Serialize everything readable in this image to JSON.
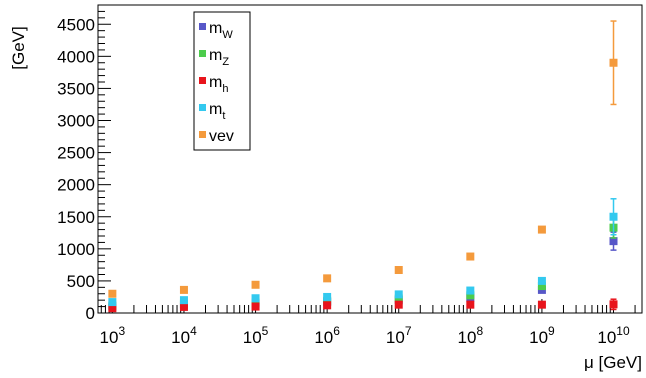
{
  "chart_data": {
    "type": "scatter",
    "title": "",
    "xlabel": "μ [GeV]",
    "ylabel": "[GeV]",
    "x_scale": "log",
    "xlim": [
      630,
      25000000000
    ],
    "ylim": [
      0,
      4800
    ],
    "x_ticks": [
      {
        "value": 1000,
        "base": "10",
        "exp": "3"
      },
      {
        "value": 10000,
        "base": "10",
        "exp": "4"
      },
      {
        "value": 100000,
        "base": "10",
        "exp": "5"
      },
      {
        "value": 1000000,
        "base": "10",
        "exp": "6"
      },
      {
        "value": 10000000,
        "base": "10",
        "exp": "7"
      },
      {
        "value": 100000000,
        "base": "10",
        "exp": "8"
      },
      {
        "value": 1000000000,
        "base": "10",
        "exp": "9"
      },
      {
        "value": 10000000000,
        "base": "10",
        "exp": "10"
      }
    ],
    "y_ticks": [
      0,
      500,
      1000,
      1500,
      2000,
      2500,
      3000,
      3500,
      4000,
      4500
    ],
    "y_tick_labels": [
      "0",
      "500",
      "1000",
      "1500",
      "2000",
      "2500",
      "3000",
      "3500",
      "4000",
      "4500"
    ],
    "grid": false,
    "legend_position": "top-left",
    "x": [
      1000,
      10000,
      100000,
      1000000,
      10000000,
      100000000,
      1000000000,
      10000000000
    ],
    "series": [
      {
        "base": "m",
        "sub": "W",
        "color": "#5757c8",
        "values": [
          100,
          130,
          150,
          170,
          200,
          240,
          360,
          1120
        ],
        "errors": [
          0,
          0,
          0,
          0,
          0,
          0,
          0,
          140
        ]
      },
      {
        "base": "m",
        "sub": "Z",
        "color": "#4ccc4c",
        "values": [
          115,
          145,
          165,
          190,
          225,
          275,
          420,
          1330
        ],
        "errors": [
          0,
          0,
          0,
          0,
          0,
          0,
          0,
          160
        ]
      },
      {
        "base": "m",
        "sub": "h",
        "color": "#e8141c",
        "values": [
          75,
          95,
          100,
          120,
          130,
          130,
          130,
          135
        ],
        "errors": [
          0,
          0,
          0,
          0,
          0,
          0,
          0,
          80
        ]
      },
      {
        "base": "m",
        "sub": "t",
        "color": "#33c9ef",
        "values": [
          170,
          200,
          230,
          250,
          290,
          350,
          500,
          1500
        ],
        "errors": [
          0,
          0,
          0,
          0,
          0,
          0,
          0,
          280
        ]
      },
      {
        "base": "vev",
        "sub": "",
        "color": "#f49a3c",
        "values": [
          300,
          360,
          440,
          540,
          670,
          880,
          1300,
          3900
        ],
        "errors": [
          0,
          0,
          0,
          0,
          0,
          0,
          0,
          650
        ]
      }
    ]
  }
}
